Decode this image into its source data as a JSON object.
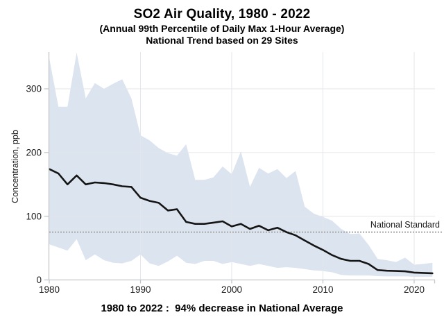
{
  "header": {
    "title": "SO2 Air Quality, 1980 - 2022",
    "subtitle1": "(Annual 99th Percentile of Daily Max 1-Hour Average)",
    "subtitle2": "National Trend based on 29 Sites"
  },
  "footer": {
    "caption": "1980 to 2022 :  94% decrease in National Average"
  },
  "chart_data": {
    "type": "area",
    "title": "SO2 Air Quality, 1980 - 2022",
    "xlabel": "",
    "ylabel": "Concentration, ppb",
    "xlim": [
      1980,
      2022.3
    ],
    "ylim": [
      0,
      358
    ],
    "xticks": [
      1980,
      1990,
      2000,
      2010,
      2020
    ],
    "yticks": [
      0,
      100,
      200,
      300
    ],
    "grid": true,
    "legend": "none",
    "x": [
      1980,
      1981,
      1982,
      1983,
      1984,
      1985,
      1986,
      1987,
      1988,
      1989,
      1990,
      1991,
      1992,
      1993,
      1994,
      1995,
      1996,
      1997,
      1998,
      1999,
      2000,
      2001,
      2002,
      2003,
      2004,
      2005,
      2006,
      2007,
      2008,
      2009,
      2010,
      2011,
      2012,
      2013,
      2014,
      2015,
      2016,
      2017,
      2018,
      2019,
      2020,
      2021,
      2022
    ],
    "series": [
      {
        "name": "National Average",
        "values": [
          174,
          167,
          150,
          164,
          150,
          153,
          152,
          150,
          147,
          146,
          129,
          124,
          121,
          109,
          111,
          91,
          88,
          88,
          90,
          92,
          84,
          88,
          80,
          85,
          78,
          82,
          75,
          70,
          62,
          54,
          47,
          39,
          33,
          30,
          30,
          25,
          15.5,
          14.5,
          14,
          13.5,
          11.5,
          11,
          10.5
        ]
      },
      {
        "name": "Band upper bound",
        "values": [
          348,
          272,
          272,
          357,
          285,
          309,
          300,
          308,
          315,
          285,
          227,
          219,
          207,
          199,
          195,
          213,
          157,
          157,
          161,
          178,
          166,
          202,
          146,
          176,
          167,
          174,
          160,
          171,
          115,
          104,
          99,
          93,
          80,
          72,
          73,
          55,
          33,
          31,
          28,
          35,
          24,
          25,
          27
        ]
      },
      {
        "name": "Band lower bound",
        "values": [
          56,
          51,
          46,
          64,
          31,
          40,
          31,
          27,
          26,
          30,
          40,
          26,
          22,
          29,
          38,
          27,
          25,
          30,
          30,
          25,
          28,
          25,
          22,
          25,
          22,
          19,
          20,
          19,
          17,
          15,
          14,
          12,
          8,
          7,
          7,
          7,
          6,
          5.5,
          5.5,
          5.5,
          5,
          5,
          5
        ]
      }
    ],
    "reference_line": {
      "label": "National Standard",
      "value": 75
    },
    "colors": {
      "band": "#dce4f0",
      "trend": "#151515",
      "grid": "#e3e6ea",
      "axis": "#c4c7ca",
      "reference": "#a8a8a8",
      "text": "#1a1a1a"
    }
  }
}
